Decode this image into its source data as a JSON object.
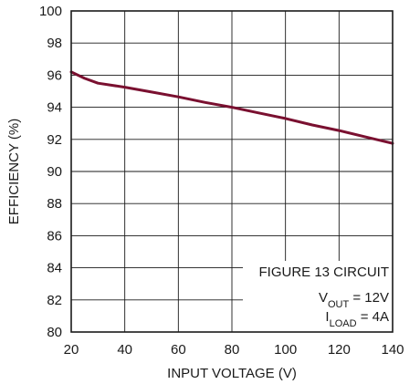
{
  "chart_data": {
    "type": "line",
    "xlabel": "INPUT VOLTAGE (V)",
    "ylabel": "EFFICIENCY (%)",
    "xlim": [
      20,
      140
    ],
    "ylim": [
      80,
      100
    ],
    "xticks": [
      20,
      40,
      60,
      80,
      100,
      120,
      140
    ],
    "yticks": [
      80,
      82,
      84,
      86,
      88,
      90,
      92,
      94,
      96,
      98,
      100
    ],
    "grid": true,
    "series": [
      {
        "color": "#7a1030",
        "x": [
          20,
          25,
          30,
          40,
          50,
          60,
          70,
          80,
          90,
          100,
          110,
          120,
          130,
          140
        ],
        "y": [
          96.2,
          95.8,
          95.5,
          95.25,
          94.95,
          94.65,
          94.3,
          94.0,
          93.65,
          93.3,
          92.9,
          92.55,
          92.15,
          91.75
        ]
      }
    ],
    "annotations": {
      "circuit": "FIGURE 13 CIRCUIT",
      "vout_main": "V",
      "vout_sub": "OUT",
      "vout_value": " = 12V",
      "iload_main": "I",
      "iload_sub": "LOAD",
      "iload_value": " = 4A"
    }
  }
}
